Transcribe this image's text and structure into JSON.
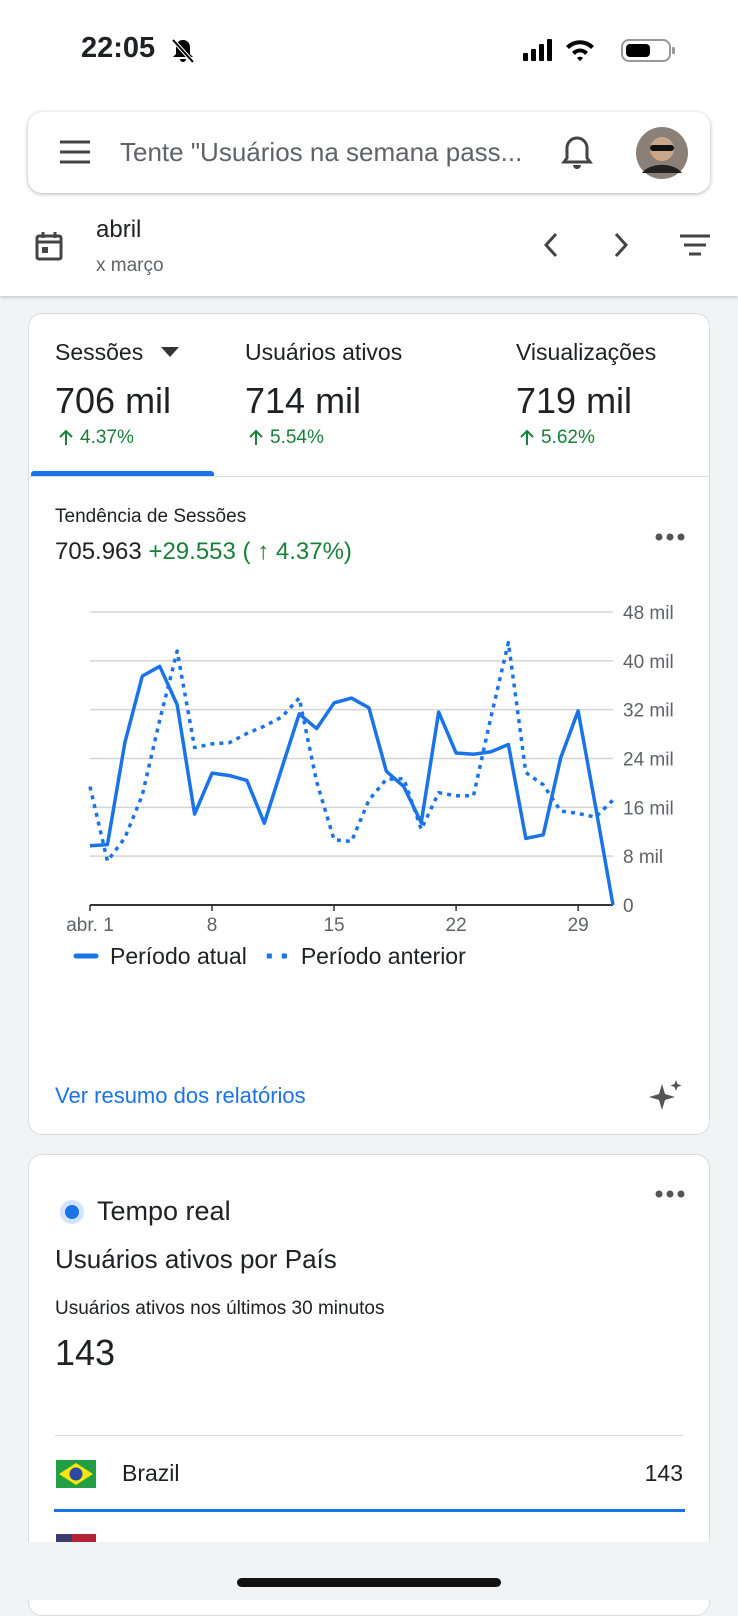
{
  "status_bar": {
    "time": "22:05"
  },
  "search": {
    "placeholder": "Tente \"Usuários na semana pass..."
  },
  "date_range": {
    "current": "abril",
    "compare": "x março"
  },
  "metrics": [
    {
      "label": "Sessões",
      "value": "706 mil",
      "change": "4.37%"
    },
    {
      "label": "Usuários ativos",
      "value": "714 mil",
      "change": "5.54%"
    },
    {
      "label": "Visualizações",
      "value": "719 mil",
      "change": "5.62%"
    }
  ],
  "trend_card": {
    "title": "Tendência de Sessões",
    "total": "705.963",
    "delta": "+29.553 ( ↑ 4.37%)",
    "link": "Ver resumo dos relatórios"
  },
  "chart_data": {
    "type": "line",
    "x": [
      1,
      2,
      3,
      4,
      5,
      6,
      7,
      8,
      9,
      10,
      11,
      12,
      13,
      14,
      15,
      16,
      17,
      18,
      19,
      20,
      21,
      22,
      23,
      24,
      25,
      26,
      27,
      28,
      29,
      30,
      31
    ],
    "xlim": [
      1,
      31
    ],
    "xticks": [
      {
        "value": 1,
        "label": "abr. 1"
      },
      8,
      15,
      22,
      29
    ],
    "ylim": [
      0,
      48
    ],
    "yticks": [
      0,
      {
        "value": 8,
        "label": "8 mil"
      },
      {
        "value": 16,
        "label": "16 mil"
      },
      {
        "value": 24,
        "label": "24 mil"
      },
      {
        "value": 32,
        "label": "32 mil"
      },
      {
        "value": 40,
        "label": "40 mil"
      },
      {
        "value": 48,
        "label": "48 mil"
      }
    ],
    "grid": true,
    "series": [
      {
        "name": "Período atual",
        "color": "#1a73e8",
        "line_style": "solid",
        "values": [
          9.7,
          9.9,
          26.6,
          37.5,
          39.1,
          32.8,
          14.9,
          21.6,
          21.2,
          20.4,
          13.4,
          22.4,
          31.3,
          28.9,
          33.1,
          33.9,
          32.3,
          21.9,
          19.4,
          13.5,
          31.6,
          24.9,
          24.7,
          25.1,
          26.3,
          10.9,
          11.5,
          24.1,
          31.8,
          16.1,
          0
        ]
      },
      {
        "name": "Período anterior",
        "color": "#1a73e8",
        "line_style": "dotted",
        "values": [
          19.4,
          7.2,
          11,
          18,
          30.3,
          41.6,
          25.8,
          26.4,
          26.6,
          28.1,
          29.3,
          30.8,
          33.9,
          20.2,
          10.7,
          10.4,
          17.2,
          20.6,
          20.7,
          12.4,
          18.4,
          17.9,
          17.9,
          30.8,
          43,
          21.7,
          19.7,
          15.4,
          15,
          14.4,
          17.2
        ]
      }
    ]
  },
  "realtime_card": {
    "badge": "Tempo real",
    "title": "Usuários ativos por País",
    "subtitle": "Usuários ativos nos últimos 30 minutos",
    "value": "143",
    "rows": [
      {
        "country": "Brazil",
        "value": "143"
      }
    ]
  }
}
